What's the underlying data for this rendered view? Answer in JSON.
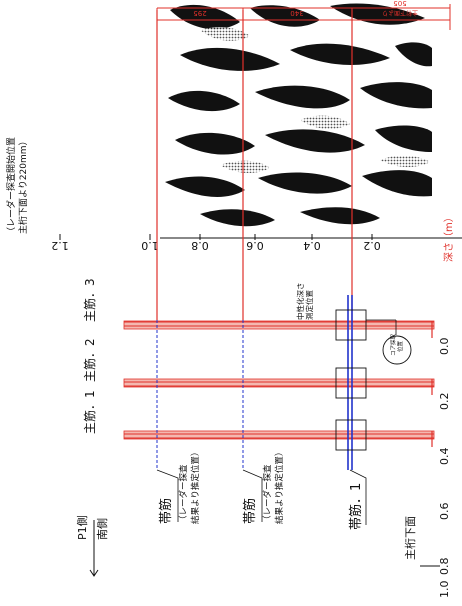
{
  "header_note": {
    "line1": "（レーダー探査開始位置",
    "line2": "主桁下面より220mm）"
  },
  "main_bar_labels": [
    "主筋．3",
    "主筋．2",
    "主筋．1"
  ],
  "side_labels": {
    "p1": "P1側",
    "south": "南側"
  },
  "stirrups": [
    {
      "label": "帯筋",
      "note1": "（レーダー探査",
      "note2": "結果より推定位置）"
    },
    {
      "label": "帯筋",
      "note1": "（レーダー探査",
      "note2": "結果より推定位置）"
    },
    {
      "label": "帯筋．1",
      "note1": "",
      "note2": ""
    }
  ],
  "girder_label": "主桁下面",
  "radar_ticks": [
    "1.2",
    "1.0",
    "0.8",
    "0.6",
    "0.4",
    "0.2"
  ],
  "radar_unit": "深さ（m）",
  "bottom_ticks": [
    "0.0",
    "0.2",
    "0.4",
    "0.6",
    "0.8",
    "1.0"
  ],
  "dimensions": [
    "295",
    "340",
    "505"
  ],
  "dim_note": "主桁下面より",
  "neutral_depth_label": {
    "line1": "中性化深さ",
    "line2": "測定位置"
  },
  "core_label": {
    "line1": "コア採取",
    "line2": "位置"
  },
  "colors": {
    "rebar": "#e0302a",
    "rebar_fill": "#f4b8b0",
    "estimated": "#2233cc",
    "dim": "#e0302a",
    "ink": "#111111"
  }
}
